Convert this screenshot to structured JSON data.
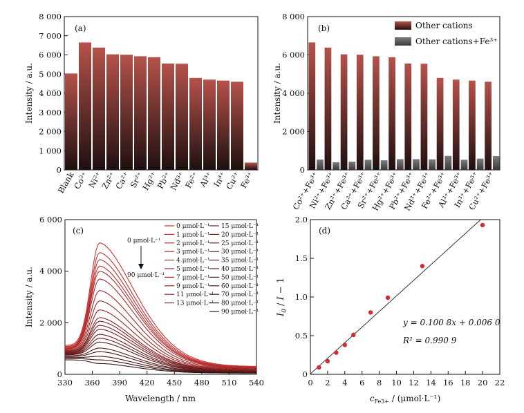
{
  "chart_data": [
    {
      "panel": "(a)",
      "type": "bar",
      "ylabel": "Intensity / a.u.",
      "ylim": [
        0,
        8000
      ],
      "yticks": [
        "0",
        "1 000",
        "2 000",
        "3 000",
        "4 000",
        "5 000",
        "6 000",
        "7 000",
        "8 000"
      ],
      "categories": [
        "Blank",
        "Co²⁺",
        "Ni²⁺",
        "Zn²⁺",
        "Ca²⁺",
        "Sr²⁺",
        "Hg²⁺",
        "Pb²⁺",
        "Nd³⁺",
        "Fe²⁺",
        "Al³⁺",
        "In³⁺",
        "Cu²⁺",
        "Fe³⁺"
      ],
      "values": [
        5030,
        6650,
        6380,
        6030,
        6010,
        5930,
        5880,
        5550,
        5540,
        4800,
        4710,
        4660,
        4600,
        380
      ],
      "colors": {
        "top": "#b5524a",
        "bottom": "#1f1010"
      }
    },
    {
      "panel": "(b)",
      "type": "bar",
      "ylabel": "Intensity / a.u.",
      "ylim": [
        0,
        8000
      ],
      "yticks": [
        "0",
        "2 000",
        "4 000",
        "6 000",
        "8 000"
      ],
      "categories": [
        "Co²⁺+Fe³⁺",
        "Ni²⁺+Fe³⁺",
        "Zn²⁺+Fe³⁺",
        "Ca²⁺+Fe³⁺",
        "Sr²⁺+Fe³⁺",
        "Hg²⁺+Fe³⁺",
        "Pb²⁺+Fe³⁺",
        "Nd³⁺+Fe³⁺",
        "Fe²⁺+Fe³⁺",
        "Al³⁺+Fe³⁺",
        "In³⁺+Fe³⁺",
        "Cu²⁺+Fe³⁺"
      ],
      "series": [
        {
          "name": "Other cations",
          "values": [
            6650,
            6380,
            6030,
            6010,
            5930,
            5880,
            5550,
            5540,
            4800,
            4710,
            4660,
            4600
          ]
        },
        {
          "name": "Other cations+Fe³⁺",
          "values": [
            540,
            400,
            430,
            530,
            500,
            560,
            560,
            550,
            730,
            530,
            590,
            720
          ]
        }
      ],
      "colors": {
        "series1_top": "#b5524a",
        "series1_bottom": "#1f1010",
        "series2_top": "#7c7c7c",
        "series2_bottom": "#3a3a3a"
      }
    },
    {
      "panel": "(c)",
      "type": "line",
      "xlabel": "Wavelength / nm",
      "ylabel": "Intensity / a.u.",
      "xlim": [
        330,
        540
      ],
      "ylim": [
        0,
        6000
      ],
      "xticks": [
        "330",
        "360",
        "390",
        "420",
        "450",
        "480",
        "510",
        "540"
      ],
      "yticks": [
        "0",
        "2 000",
        "4 000",
        "6 000"
      ],
      "annotation_top": "0 μmol·L⁻¹",
      "annotation_bottom": "90 μmol·L⁻¹",
      "legend": [
        "0 μmol·L⁻¹",
        "1 μmol·L⁻¹",
        "2 μmol·L⁻¹",
        "3 μmol·L⁻¹",
        "4 μmol·L⁻¹",
        "5 μmol·L⁻¹",
        "7 μmol·L⁻¹",
        "9 μmol·L⁻¹",
        "11 μmol·L⁻¹",
        "13 μmol·L⁻¹",
        "15 μmol·L⁻¹",
        "20 μmol·L⁻¹",
        "25 μmol·L⁻¹",
        "30 μmol·L⁻¹",
        "35 μmol·L⁻¹",
        "40 μmol·L⁻¹",
        "50 μmol·L⁻¹",
        "60 μmol·L⁻¹",
        "70 μmol·L⁻¹",
        "80 μmol·L⁻¹",
        "90 μmol·L⁻¹"
      ],
      "peak_wavelength": 368,
      "peak_intensities": [
        5100,
        4720,
        4450,
        4200,
        4000,
        3700,
        3250,
        2850,
        2500,
        2200,
        2060,
        1900,
        1750,
        1550,
        1400,
        1250,
        1020,
        880,
        700,
        560,
        420
      ],
      "start_intensities": [
        1120,
        1080,
        1050,
        1020,
        1000,
        980,
        950,
        920,
        900,
        880,
        860,
        840,
        820,
        800,
        780,
        760,
        720,
        690,
        650,
        610,
        560
      ],
      "end_intensities": [
        300,
        280,
        265,
        250,
        240,
        225,
        205,
        185,
        170,
        155,
        145,
        135,
        125,
        115,
        105,
        95,
        85,
        75,
        65,
        55,
        45
      ]
    },
    {
      "panel": "(d)",
      "type": "scatter",
      "xlabel": "c_Fe3+ / (μmol·L⁻¹)",
      "ylabel": "I0 / I − 1",
      "xlim": [
        0,
        22
      ],
      "ylim": [
        0,
        2.0
      ],
      "xticks": [
        "0",
        "2",
        "4",
        "6",
        "8",
        "10",
        "12",
        "14",
        "16",
        "18",
        "20",
        "22"
      ],
      "yticks": [
        "0",
        "0.5",
        "1.0",
        "1.5",
        "2.0"
      ],
      "x": [
        1,
        2,
        3,
        4,
        5,
        7,
        9,
        13,
        20
      ],
      "y": [
        0.09,
        0.17,
        0.28,
        0.38,
        0.51,
        0.8,
        0.99,
        1.4,
        1.93
      ],
      "fit": {
        "slope": 0.1008,
        "intercept": 0.006
      },
      "equation": "y = 0.100 8x + 0.006 0",
      "r2": "R² = 0.990 9",
      "colors": {
        "points": "#d92a2a",
        "line": "#333333"
      }
    }
  ]
}
